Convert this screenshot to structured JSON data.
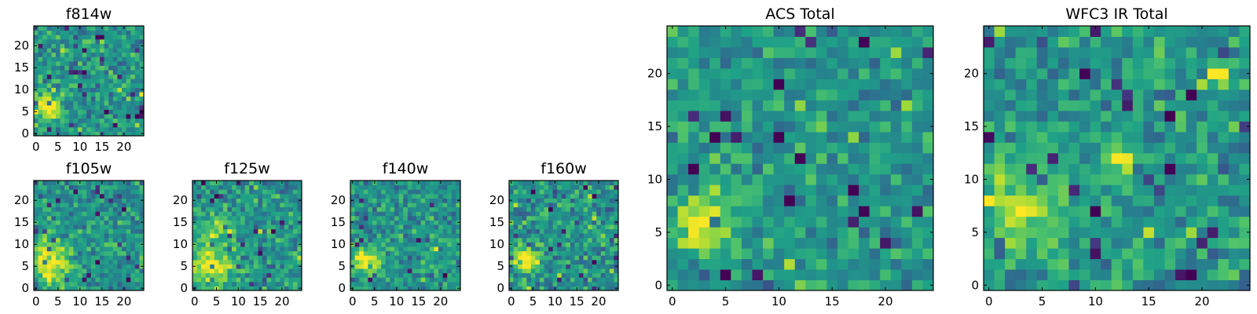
{
  "chart_data": [
    {
      "type": "heatmap",
      "title": "f814w",
      "grid_size": 25,
      "xticks": [
        0,
        5,
        10,
        15,
        20
      ],
      "yticks": [
        0,
        5,
        10,
        15,
        20
      ],
      "xlim": [
        0,
        25
      ],
      "ylim": [
        0,
        25
      ],
      "colormap": "viridis",
      "seed": 11,
      "noise": 0.16,
      "sources": [
        {
          "x": 2.5,
          "y": 6,
          "sigma": 2.2,
          "amp": 0.55
        }
      ]
    },
    {
      "type": "heatmap",
      "title": "f105w",
      "grid_size": 25,
      "xticks": [
        0,
        5,
        10,
        15,
        20
      ],
      "yticks": [
        0,
        5,
        10,
        15,
        20
      ],
      "xlim": [
        0,
        25
      ],
      "ylim": [
        0,
        25
      ],
      "colormap": "viridis",
      "seed": 23,
      "noise": 0.15,
      "sources": [
        {
          "x": 3,
          "y": 6,
          "sigma": 3.2,
          "amp": 0.5
        }
      ]
    },
    {
      "type": "heatmap",
      "title": "f125w",
      "grid_size": 25,
      "xticks": [
        0,
        5,
        10,
        15,
        20
      ],
      "yticks": [
        0,
        5,
        10,
        15,
        20
      ],
      "xlim": [
        0,
        25
      ],
      "ylim": [
        0,
        25
      ],
      "colormap": "viridis",
      "seed": 37,
      "noise": 0.16,
      "sources": [
        {
          "x": 3.5,
          "y": 5,
          "sigma": 3.5,
          "amp": 0.45
        },
        {
          "x": 5,
          "y": 14,
          "sigma": 2.5,
          "amp": 0.25
        }
      ]
    },
    {
      "type": "heatmap",
      "title": "f140w",
      "grid_size": 25,
      "xticks": [
        0,
        5,
        10,
        15,
        20
      ],
      "yticks": [
        0,
        5,
        10,
        15,
        20
      ],
      "xlim": [
        0,
        25
      ],
      "ylim": [
        0,
        25
      ],
      "colormap": "viridis",
      "seed": 41,
      "noise": 0.16,
      "sources": [
        {
          "x": 3.5,
          "y": 6.5,
          "sigma": 2.0,
          "amp": 0.55
        }
      ]
    },
    {
      "type": "heatmap",
      "title": "f160w",
      "grid_size": 25,
      "xticks": [
        0,
        5,
        10,
        15,
        20
      ],
      "yticks": [
        0,
        5,
        10,
        15,
        20
      ],
      "xlim": [
        0,
        25
      ],
      "ylim": [
        0,
        25
      ],
      "colormap": "viridis",
      "seed": 53,
      "noise": 0.17,
      "sources": [
        {
          "x": 3.5,
          "y": 6.5,
          "sigma": 1.8,
          "amp": 0.6
        }
      ]
    },
    {
      "type": "heatmap",
      "title": "ACS Total",
      "grid_size": 25,
      "xticks": [
        0,
        5,
        10,
        15,
        20
      ],
      "yticks": [
        0,
        5,
        10,
        15,
        20
      ],
      "xlim": [
        0,
        25
      ],
      "ylim": [
        0,
        25
      ],
      "colormap": "viridis",
      "seed": 67,
      "noise": 0.14,
      "sources": [
        {
          "x": 3,
          "y": 6,
          "sigma": 2.0,
          "amp": 0.5
        }
      ]
    },
    {
      "type": "heatmap",
      "title": "WFC3 IR Total",
      "grid_size": 25,
      "xticks": [
        0,
        5,
        10,
        15,
        20
      ],
      "yticks": [
        0,
        5,
        10,
        15,
        20
      ],
      "xlim": [
        0,
        25
      ],
      "ylim": [
        0,
        25
      ],
      "colormap": "viridis",
      "seed": 79,
      "noise": 0.15,
      "sources": [
        {
          "x": 2.5,
          "y": 7,
          "sigma": 3.0,
          "amp": 0.35
        },
        {
          "x": 12,
          "y": 12,
          "sigma": 1.0,
          "amp": 0.55
        },
        {
          "x": 21,
          "y": 20,
          "sigma": 0.9,
          "amp": 0.55
        }
      ]
    }
  ]
}
